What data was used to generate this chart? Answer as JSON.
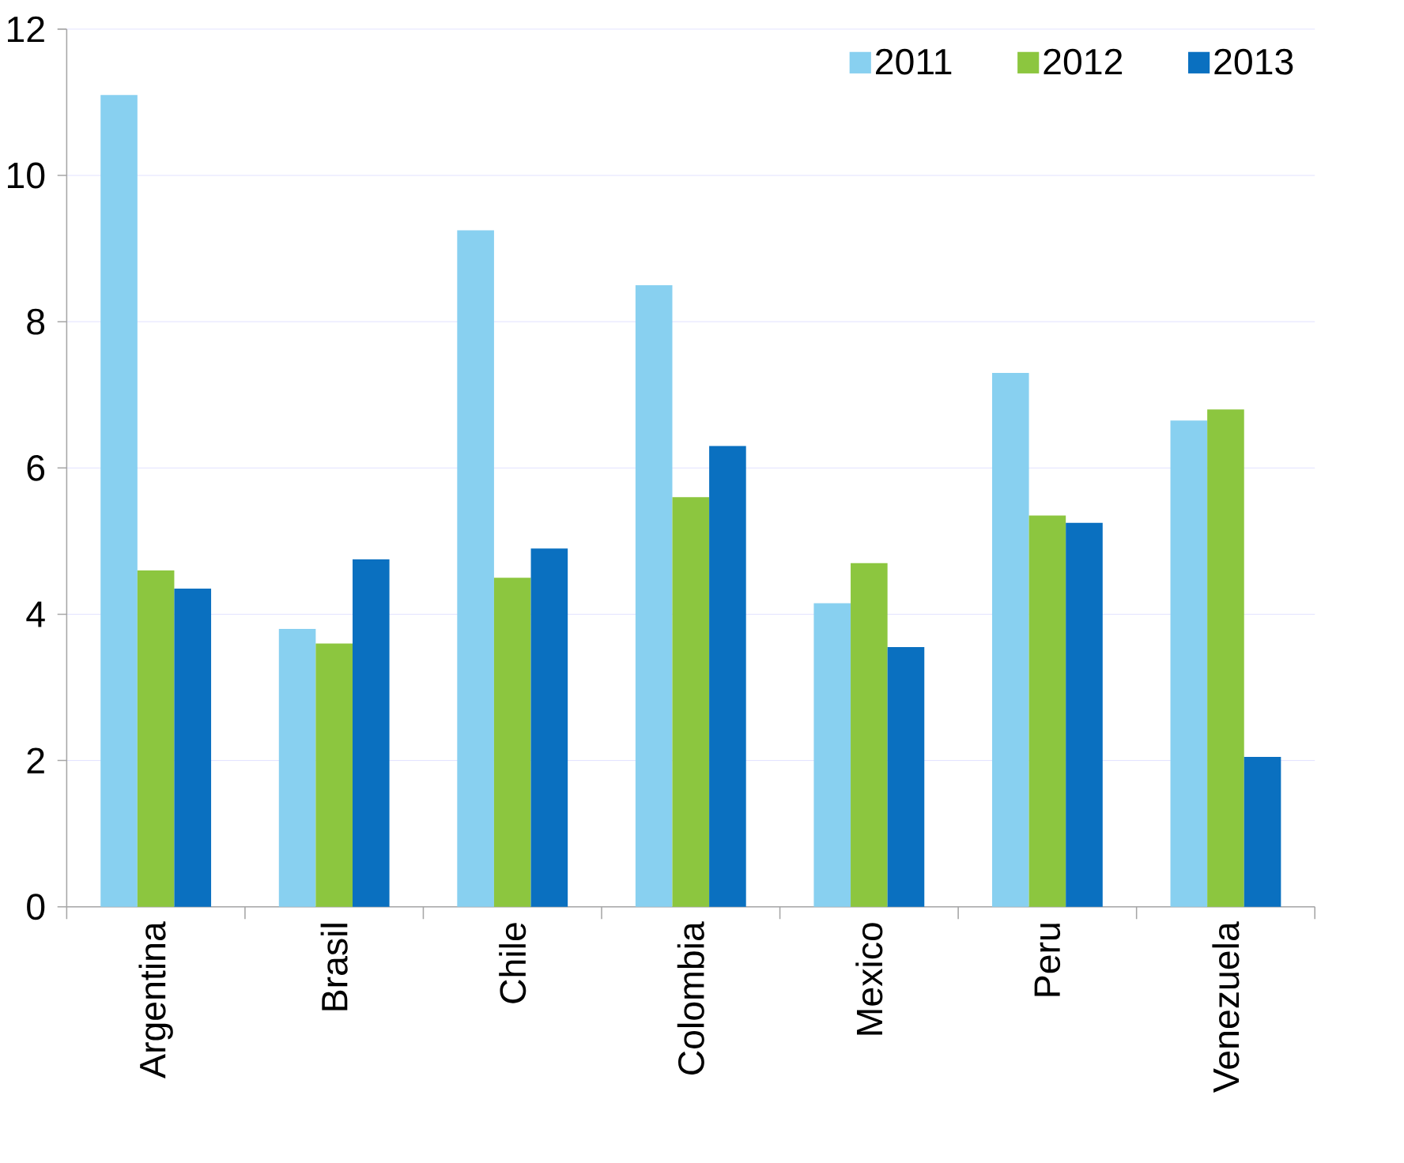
{
  "chart_data": {
    "type": "bar",
    "categories": [
      "Argentina",
      "Brasil",
      "Chile",
      "Colombia",
      "Mexico",
      "Peru",
      "Venezuela"
    ],
    "series": [
      {
        "name": "2011",
        "color": "#88d0f0",
        "values": [
          11.1,
          3.8,
          9.25,
          8.5,
          4.15,
          7.3,
          6.65
        ]
      },
      {
        "name": "2012",
        "color": "#8cc63f",
        "values": [
          4.6,
          3.6,
          4.5,
          5.6,
          4.7,
          5.35,
          6.8
        ]
      },
      {
        "name": "2013",
        "color": "#0a70c0",
        "values": [
          4.35,
          4.75,
          4.9,
          6.3,
          3.55,
          5.25,
          2.05
        ]
      }
    ],
    "ylim": [
      0,
      12
    ],
    "yticks": [
      0,
      2,
      4,
      6,
      8,
      10,
      12
    ],
    "grid": "y",
    "legend": "top right"
  }
}
